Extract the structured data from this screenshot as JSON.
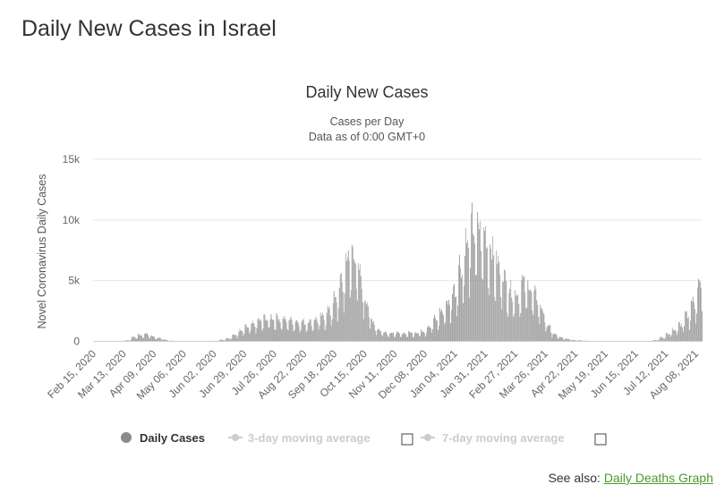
{
  "page": {
    "title": "Daily New Cases in Israel",
    "see_also_label": "See also:",
    "see_also_link": "Daily Deaths Graph"
  },
  "colors": {
    "bar": "#a6a6a6",
    "bar_dark": "#8c8c8c",
    "grid": "#e6e6e6",
    "axis": "#c0d0e0",
    "link": "#4a9a2e",
    "legend_disabled": "#cccccc"
  },
  "chart_data": {
    "type": "bar",
    "title": "Daily New Cases",
    "subtitle_lines": [
      "Cases per Day",
      "Data as of 0:00 GMT+0"
    ],
    "ylabel": "Novel Coronavirus Daily Cases",
    "xlabel": "",
    "ylim": [
      0,
      15000
    ],
    "yticks": [
      0,
      5000,
      10000,
      15000
    ],
    "ytick_labels": [
      "0",
      "5k",
      "10k",
      "15k"
    ],
    "grid": true,
    "legend_position": "bottom-center",
    "xtick_labels": [
      "Feb 15, 2020",
      "Mar 13, 2020",
      "Apr 09, 2020",
      "May 06, 2020",
      "Jun 02, 2020",
      "Jun 29, 2020",
      "Jul 26, 2020",
      "Aug 22, 2020",
      "Sep 18, 2020",
      "Oct 15, 2020",
      "Nov 11, 2020",
      "Dec 08, 2020",
      "Jan 04, 2021",
      "Jan 31, 2021",
      "Feb 27, 2021",
      "Mar 26, 2021",
      "Apr 22, 2021",
      "May 19, 2021",
      "Jun 15, 2021",
      "Jul 12, 2021",
      "Aug 08, 2021"
    ],
    "start_date": "Feb 15, 2020",
    "end_date": "Aug 18, 2021",
    "series": [
      {
        "name": "Daily Cases",
        "weekly_average_values": [
          0,
          0,
          0,
          0,
          5,
          80,
          330,
          500,
          560,
          400,
          250,
          130,
          50,
          20,
          10,
          10,
          10,
          10,
          15,
          40,
          120,
          250,
          500,
          800,
          1100,
          1300,
          1600,
          1800,
          1850,
          1850,
          1700,
          1650,
          1550,
          1500,
          1550,
          1700,
          1900,
          2400,
          3200,
          4500,
          6500,
          7000,
          5200,
          3200,
          1600,
          900,
          750,
          650,
          620,
          630,
          680,
          700,
          800,
          1200,
          1700,
          2300,
          3000,
          4000,
          5800,
          7500,
          8800,
          8700,
          8300,
          7200,
          6000,
          5000,
          4000,
          3700,
          4500,
          4300,
          3500,
          2500,
          1200,
          550,
          300,
          200,
          110,
          80,
          50,
          30,
          20,
          15,
          12,
          10,
          10,
          10,
          12,
          18,
          30,
          100,
          300,
          600,
          900,
          1300,
          2000,
          3000,
          4300
        ]
      },
      {
        "name": "3-day moving average"
      },
      {
        "name": "7-day moving average"
      }
    ]
  }
}
